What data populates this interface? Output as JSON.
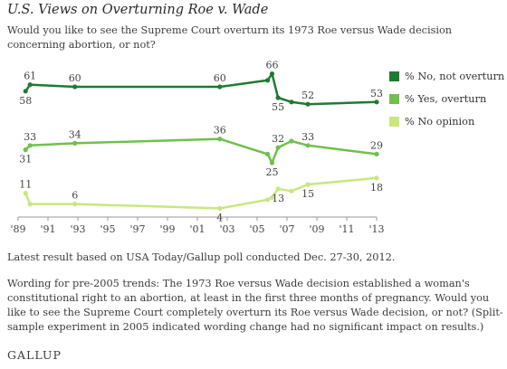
{
  "title": "U.S. Views on Overturning Roe v. Wade",
  "question": "Would you like to see the Supreme Court overturn its 1973 Roe versus Wade decision concerning abortion, or not?",
  "note_latest": "Latest result based on USA Today/Gallup poll conducted Dec. 27-30, 2012.",
  "note_wording": "Wording for pre-2005 trends: The 1973 Roe versus Wade decision established a woman's constitutional right to an abortion, at least in the first three months of pregnancy. Would you like to see the Supreme Court completely overturn its Roe versus Wade decision, or not? (Split-sample experiment in 2005 indicated wording change had no significant impact on results.)",
  "logo_text": "GALLUP",
  "chart_data": {
    "type": "line",
    "title": "U.S. Views on Overturning Roe v. Wade",
    "xlabel": "",
    "ylabel": "",
    "x_ticks": [
      "'89",
      "'91",
      "'93",
      "'95",
      "'97",
      "'99",
      "'01",
      "'03",
      "'05",
      "'07",
      "'09",
      "'11",
      "'13"
    ],
    "xlim": [
      1989,
      2013
    ],
    "ylim": [
      0,
      75
    ],
    "grid": false,
    "legend_position": "right",
    "series": [
      {
        "name": "% No, not overturn",
        "color": "#1e7b32",
        "points": [
          [
            1989.5,
            58
          ],
          [
            1989.8,
            61
          ],
          [
            1992.8,
            60
          ],
          [
            2002.5,
            60
          ],
          [
            2005.7,
            63
          ],
          [
            2006.0,
            66
          ],
          [
            2006.4,
            55
          ],
          [
            2007.3,
            53
          ],
          [
            2008.4,
            52
          ],
          [
            2013.0,
            53
          ]
        ],
        "labels": [
          {
            "i": 0,
            "text": "58",
            "pos": "below"
          },
          {
            "i": 1,
            "text": "61",
            "pos": "above"
          },
          {
            "i": 2,
            "text": "60",
            "pos": "above"
          },
          {
            "i": 3,
            "text": "60",
            "pos": "above"
          },
          {
            "i": 5,
            "text": "66",
            "pos": "above"
          },
          {
            "i": 6,
            "text": "55",
            "pos": "below"
          },
          {
            "i": 8,
            "text": "52",
            "pos": "above"
          },
          {
            "i": 9,
            "text": "53",
            "pos": "above"
          }
        ]
      },
      {
        "name": "% Yes, overturn",
        "color": "#6fc04d",
        "points": [
          [
            1989.5,
            31
          ],
          [
            1989.8,
            33
          ],
          [
            1992.8,
            34
          ],
          [
            2002.5,
            36
          ],
          [
            2005.7,
            29
          ],
          [
            2006.0,
            25
          ],
          [
            2006.4,
            32
          ],
          [
            2007.3,
            35
          ],
          [
            2008.4,
            33
          ],
          [
            2013.0,
            29
          ]
        ],
        "labels": [
          {
            "i": 0,
            "text": "31",
            "pos": "below"
          },
          {
            "i": 1,
            "text": "33",
            "pos": "above"
          },
          {
            "i": 2,
            "text": "34",
            "pos": "above"
          },
          {
            "i": 3,
            "text": "36",
            "pos": "above"
          },
          {
            "i": 5,
            "text": "25",
            "pos": "below"
          },
          {
            "i": 6,
            "text": "32",
            "pos": "above"
          },
          {
            "i": 8,
            "text": "33",
            "pos": "above"
          },
          {
            "i": 9,
            "text": "29",
            "pos": "above"
          }
        ]
      },
      {
        "name": "% No opinion",
        "color": "#c9e77e",
        "points": [
          [
            1989.5,
            11
          ],
          [
            1989.8,
            6
          ],
          [
            1992.8,
            6
          ],
          [
            2002.5,
            4
          ],
          [
            2005.7,
            8
          ],
          [
            2006.0,
            9
          ],
          [
            2006.4,
            13
          ],
          [
            2007.3,
            12
          ],
          [
            2008.4,
            15
          ],
          [
            2013.0,
            18
          ]
        ],
        "labels": [
          {
            "i": 0,
            "text": "11",
            "pos": "above"
          },
          {
            "i": 2,
            "text": "6",
            "pos": "above"
          },
          {
            "i": 3,
            "text": "4",
            "pos": "below"
          },
          {
            "i": 6,
            "text": "13",
            "pos": "below"
          },
          {
            "i": 8,
            "text": "15",
            "pos": "below"
          },
          {
            "i": 9,
            "text": "18",
            "pos": "below"
          }
        ]
      }
    ]
  }
}
